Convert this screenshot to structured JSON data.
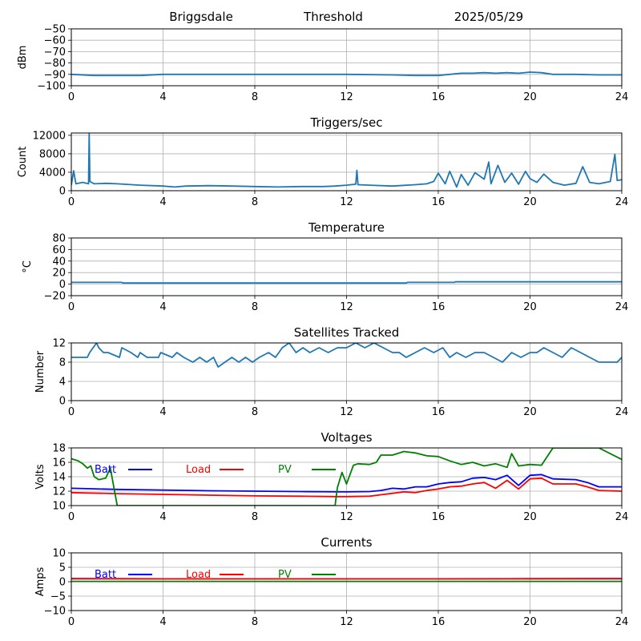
{
  "header": {
    "station": "Briggsdale",
    "mode": "Threshold",
    "date": "2025/05/29"
  },
  "colors": {
    "series": "#1f77b4",
    "batt": "#0000ff",
    "load": "#ff0000",
    "pv": "#008000"
  },
  "chart_data": [
    {
      "id": "threshold",
      "type": "line",
      "title": "",
      "ylabel": "dBm",
      "xlim": [
        0,
        24
      ],
      "ylim": [
        -100,
        -50
      ],
      "xticks": [
        "0",
        "4",
        "8",
        "12",
        "16",
        "20",
        "24"
      ],
      "yticks": [
        "−50",
        "−60",
        "−70",
        "−80",
        "−90",
        "−100"
      ],
      "grid": true,
      "series": [
        {
          "color": "#1f77b4",
          "x": [
            0,
            1,
            2,
            3,
            4,
            6,
            8,
            10,
            12,
            14,
            15,
            16,
            16.5,
            17,
            17.5,
            18,
            18.5,
            19,
            19.5,
            20,
            20.5,
            21,
            22,
            23,
            24
          ],
          "y": [
            -90,
            -91,
            -91,
            -91,
            -90,
            -90,
            -90,
            -90,
            -90,
            -90.5,
            -91,
            -91,
            -90,
            -89,
            -89,
            -88.5,
            -89,
            -88.5,
            -89,
            -88,
            -88.5,
            -90,
            -90,
            -90.5,
            -90.5
          ]
        }
      ]
    },
    {
      "id": "triggers",
      "type": "line",
      "title": "Triggers/sec",
      "ylabel": "Count",
      "xlim": [
        0,
        24
      ],
      "ylim": [
        0,
        12500
      ],
      "xticks": [
        "0",
        "4",
        "8",
        "12",
        "16",
        "20",
        "24"
      ],
      "yticks": [
        "12000",
        "8000",
        "4000",
        "0"
      ],
      "grid": true,
      "series": [
        {
          "color": "#1f77b4",
          "x": [
            0,
            0.1,
            0.2,
            0.5,
            0.75,
            0.78,
            0.81,
            1,
            1.5,
            2,
            3,
            4,
            4.5,
            5,
            6,
            7,
            8,
            9,
            10,
            11,
            11.5,
            12,
            12.4,
            12.45,
            12.5,
            13,
            14,
            15,
            15.5,
            15.8,
            16,
            16.3,
            16.5,
            16.8,
            17,
            17.3,
            17.6,
            18,
            18.2,
            18.3,
            18.6,
            18.9,
            19.2,
            19.5,
            19.8,
            20,
            20.3,
            20.6,
            21,
            21.5,
            22,
            22.3,
            22.6,
            23,
            23.5,
            23.7,
            23.8,
            24
          ],
          "y": [
            1200,
            4300,
            1500,
            1800,
            1500,
            12300,
            2000,
            1500,
            1600,
            1500,
            1200,
            1000,
            800,
            1000,
            1100,
            1000,
            900,
            800,
            900,
            900,
            1000,
            1200,
            1400,
            4400,
            1300,
            1200,
            1000,
            1300,
            1500,
            2000,
            3800,
            1500,
            4200,
            800,
            3500,
            1200,
            3900,
            2500,
            6200,
            1500,
            5500,
            1800,
            3800,
            1400,
            4200,
            2600,
            1800,
            3600,
            1800,
            1200,
            1600,
            5200,
            1800,
            1500,
            2000,
            7900,
            2200,
            2400
          ]
        }
      ]
    },
    {
      "id": "temperature",
      "type": "line",
      "title": "Temperature",
      "ylabel": "°C",
      "xlim": [
        0,
        24
      ],
      "ylim": [
        -20,
        80
      ],
      "xticks": [
        "0",
        "4",
        "8",
        "12",
        "16",
        "20",
        "24"
      ],
      "yticks": [
        "80",
        "60",
        "40",
        "20",
        "0",
        "−20"
      ],
      "grid": true,
      "series": [
        {
          "color": "#1f77b4",
          "x": [
            0,
            2.2,
            2.25,
            14.6,
            14.65,
            16.7,
            16.75,
            24
          ],
          "y": [
            3,
            3,
            2,
            2,
            3,
            3,
            4,
            4
          ]
        }
      ]
    },
    {
      "id": "satellites",
      "type": "line",
      "title": "Satellites Tracked",
      "ylabel": "Number",
      "xlim": [
        0,
        24
      ],
      "ylim": [
        0,
        12
      ],
      "xticks": [
        "0",
        "4",
        "8",
        "12",
        "16",
        "20",
        "24"
      ],
      "yticks": [
        "12",
        "8",
        "4",
        "0"
      ],
      "grid": true,
      "series": [
        {
          "color": "#1f77b4",
          "x": [
            0,
            0.7,
            0.8,
            1.1,
            1.2,
            1.4,
            1.6,
            2.1,
            2.2,
            2.6,
            2.9,
            3.0,
            3.3,
            3.8,
            3.9,
            4.4,
            4.6,
            4.9,
            5.3,
            5.6,
            5.9,
            6.2,
            6.4,
            6.7,
            7.0,
            7.3,
            7.6,
            7.9,
            8.2,
            8.6,
            8.9,
            9.2,
            9.5,
            9.8,
            10.1,
            10.4,
            10.8,
            11.2,
            11.6,
            12.0,
            12.4,
            12.8,
            13.2,
            13.6,
            14.0,
            14.3,
            14.6,
            15.0,
            15.4,
            15.8,
            16.2,
            16.5,
            16.8,
            17.2,
            17.6,
            18.0,
            18.4,
            18.8,
            19.2,
            19.6,
            20.0,
            20.3,
            20.6,
            21.0,
            21.4,
            21.8,
            22.2,
            22.6,
            23.0,
            23.4,
            23.8,
            24
          ],
          "y": [
            9,
            9,
            10,
            12,
            11,
            10,
            10,
            9,
            11,
            10,
            9,
            10,
            9,
            9,
            10,
            9,
            10,
            9,
            8,
            9,
            8,
            9,
            7,
            8,
            9,
            8,
            9,
            8,
            9,
            10,
            9,
            11,
            12,
            10,
            11,
            10,
            11,
            10,
            11,
            11,
            12,
            11,
            12,
            11,
            10,
            10,
            9,
            10,
            11,
            10,
            11,
            9,
            10,
            9,
            10,
            10,
            9,
            8,
            10,
            9,
            10,
            10,
            11,
            10,
            9,
            11,
            10,
            9,
            8,
            8,
            8,
            9
          ]
        }
      ]
    },
    {
      "id": "voltages",
      "type": "line",
      "title": "Voltages",
      "ylabel": "Volts",
      "xlim": [
        0,
        24
      ],
      "ylim": [
        10,
        18
      ],
      "xticks": [
        "0",
        "4",
        "8",
        "12",
        "16",
        "20",
        "24"
      ],
      "yticks": [
        "18",
        "16",
        "14",
        "12",
        "10"
      ],
      "grid": true,
      "legend": "top-left",
      "series": [
        {
          "name": "Batt",
          "color": "#0000ff",
          "x": [
            0,
            2,
            4,
            6,
            8,
            10,
            12,
            13,
            13.5,
            14,
            14.5,
            15,
            15.5,
            16,
            16.5,
            17,
            17.5,
            18,
            18.5,
            19,
            19.5,
            20,
            20.5,
            21,
            22,
            22.5,
            23,
            24
          ],
          "y": [
            12.4,
            12.25,
            12.15,
            12.05,
            12.0,
            11.95,
            11.9,
            11.95,
            12.1,
            12.4,
            12.3,
            12.6,
            12.6,
            13.0,
            13.2,
            13.3,
            13.8,
            13.9,
            13.6,
            14.2,
            12.8,
            14.2,
            14.3,
            13.7,
            13.6,
            13.2,
            12.6,
            12.6
          ]
        },
        {
          "name": "Load",
          "color": "#ff0000",
          "x": [
            0,
            2,
            4,
            6,
            8,
            10,
            11.5,
            12,
            13,
            13.5,
            14,
            14.5,
            15,
            15.5,
            16,
            16.5,
            17,
            17.5,
            18,
            18.5,
            19,
            19.5,
            20,
            20.5,
            21,
            22,
            22.5,
            23,
            24
          ],
          "y": [
            11.8,
            11.65,
            11.55,
            11.45,
            11.35,
            11.3,
            11.25,
            11.25,
            11.3,
            11.5,
            11.7,
            11.9,
            11.8,
            12.1,
            12.3,
            12.6,
            12.7,
            13.0,
            13.2,
            12.4,
            13.5,
            12.3,
            13.7,
            13.8,
            13.0,
            13.0,
            12.6,
            12.1,
            12.0
          ]
        },
        {
          "name": "PV",
          "color": "#008000",
          "x": [
            0,
            0.3,
            0.5,
            0.7,
            0.85,
            1.0,
            1.2,
            1.5,
            1.7,
            2.0,
            11.5,
            11.6,
            11.8,
            12.0,
            12.3,
            12.5,
            13,
            13.3,
            13.5,
            14,
            14.5,
            15,
            15.5,
            16,
            16.5,
            17,
            17.5,
            18,
            18.5,
            19,
            19.2,
            19.5,
            20,
            20.5,
            21,
            23,
            24
          ],
          "y": [
            16.5,
            16.2,
            15.8,
            15.2,
            15.5,
            14.0,
            13.6,
            13.8,
            15.2,
            10.0,
            10.0,
            12.5,
            14.6,
            13.0,
            15.6,
            15.8,
            15.7,
            16.0,
            17.0,
            17.0,
            17.5,
            17.3,
            16.9,
            16.8,
            16.2,
            15.7,
            16.0,
            15.5,
            15.8,
            15.3,
            17.2,
            15.5,
            15.7,
            15.6,
            18.0,
            18.0,
            16.4
          ]
        }
      ]
    },
    {
      "id": "currents",
      "type": "line",
      "title": "Currents",
      "ylabel": "Amps",
      "xlim": [
        0,
        24
      ],
      "ylim": [
        -10,
        10
      ],
      "xticks": [
        "0",
        "4",
        "8",
        "12",
        "16",
        "20",
        "24"
      ],
      "yticks": [
        "10",
        "5",
        "0",
        "−5",
        "−10"
      ],
      "grid": true,
      "legend": "top-left",
      "series": [
        {
          "name": "Batt",
          "color": "#0000ff",
          "x": [
            0,
            24
          ],
          "y": [
            1.0,
            1.0
          ]
        },
        {
          "name": "Load",
          "color": "#ff0000",
          "x": [
            0,
            2,
            4,
            8,
            12,
            16,
            20,
            24
          ],
          "y": [
            1.1,
            1.05,
            1.0,
            1.0,
            1.0,
            1.0,
            1.05,
            1.1
          ]
        },
        {
          "name": "PV",
          "color": "#008000",
          "x": [
            0,
            24
          ],
          "y": [
            0.1,
            0.1
          ]
        }
      ]
    }
  ]
}
